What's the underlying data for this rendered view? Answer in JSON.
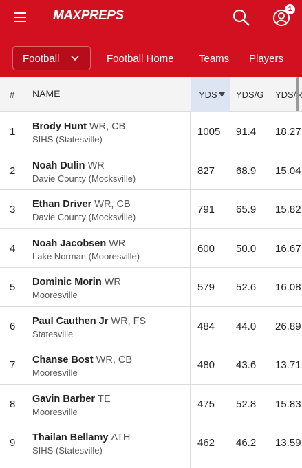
{
  "header": {
    "logo": "MAXPREPS",
    "badge": "1"
  },
  "nav": {
    "sport": "Football",
    "links": [
      "Football Home",
      "Teams",
      "Players"
    ]
  },
  "table": {
    "columns": [
      "#",
      "NAME",
      "YDS",
      "YDS/G",
      "YDS/R"
    ],
    "rows": [
      [
        "1",
        "Brody Hunt",
        "WR, CB",
        "SIHS (Statesville)",
        "1005",
        "91.4",
        "18.27"
      ],
      [
        "2",
        "Noah Dulin",
        "WR",
        "Davie County (Mocksville)",
        "827",
        "68.9",
        "15.04"
      ],
      [
        "3",
        "Ethan Driver",
        "WR, CB",
        "Davie County (Mocksville)",
        "791",
        "65.9",
        "15.82"
      ],
      [
        "4",
        "Noah Jacobsen",
        "WR",
        "Lake Norman (Mooresville)",
        "600",
        "50.0",
        "16.67"
      ],
      [
        "5",
        "Dominic Morin",
        "WR",
        "Mooresville",
        "579",
        "52.6",
        "16.08"
      ],
      [
        "6",
        "Paul Cauthen Jr",
        "WR, FS",
        "Statesville",
        "484",
        "44.0",
        "26.89"
      ],
      [
        "7",
        "Chanse Bost",
        "WR, CB",
        "Mooresville",
        "480",
        "43.6",
        "13.71"
      ],
      [
        "8",
        "Gavin Barber",
        "TE",
        "Mooresville",
        "475",
        "52.8",
        "15.83"
      ],
      [
        "9",
        "Thailan Bellamy",
        "ATH",
        "SIHS (Statesville)",
        "462",
        "46.2",
        "13.59"
      ]
    ]
  }
}
